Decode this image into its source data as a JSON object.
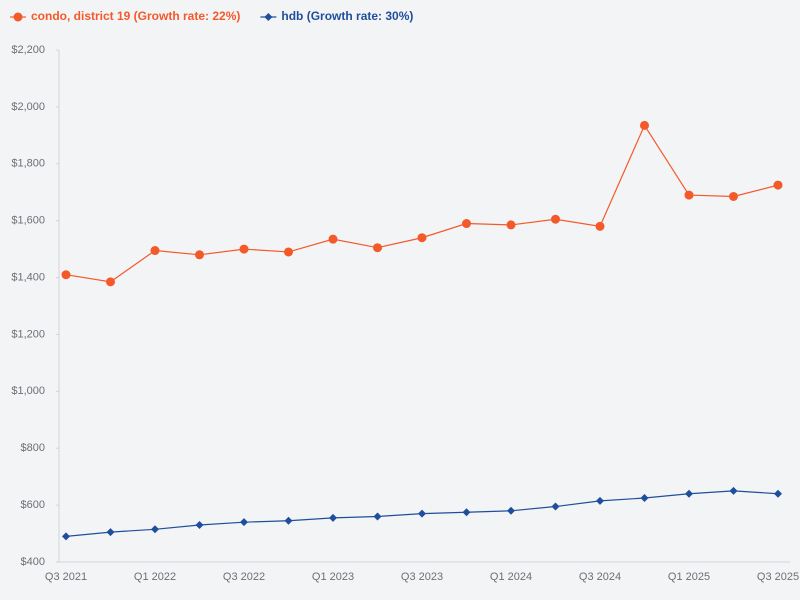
{
  "chart_data": {
    "type": "line",
    "categories": [
      "Q3 2021",
      null,
      "Q1 2022",
      null,
      "Q3 2022",
      null,
      "Q1 2023",
      null,
      "Q3 2023",
      null,
      "Q1 2024",
      null,
      "Q3 2024",
      null,
      "Q1 2025",
      null,
      "Q3 2025"
    ],
    "series": [
      {
        "name": "condo, district 19 (Growth rate: 22%)",
        "color": "#f4592a",
        "marker": "circle",
        "values": [
          1410,
          1385,
          1495,
          1480,
          1500,
          1490,
          1535,
          1505,
          1540,
          1590,
          1585,
          1605,
          1580,
          1935,
          1690,
          1685,
          1725
        ]
      },
      {
        "name": "hdb (Growth rate: 30%)",
        "color": "#1f4e9c",
        "marker": "diamond",
        "values": [
          490,
          505,
          515,
          530,
          540,
          545,
          555,
          560,
          570,
          575,
          580,
          595,
          615,
          625,
          640,
          650,
          640
        ]
      }
    ],
    "ylim": [
      400,
      2200
    ],
    "yticks": [
      {
        "value": 400,
        "label": "$400"
      },
      {
        "value": 600,
        "label": "$600"
      },
      {
        "value": 800,
        "label": "$800"
      },
      {
        "value": 1000,
        "label": "$1,000"
      },
      {
        "value": 1200,
        "label": "$1,200"
      },
      {
        "value": 1400,
        "label": "$1,400"
      },
      {
        "value": 1600,
        "label": "$1,600"
      },
      {
        "value": 1800,
        "label": "$1,800"
      },
      {
        "value": 2000,
        "label": "$2,000"
      },
      {
        "value": 2200,
        "label": "$2,200"
      }
    ],
    "grid": false,
    "legend": "top-left"
  }
}
